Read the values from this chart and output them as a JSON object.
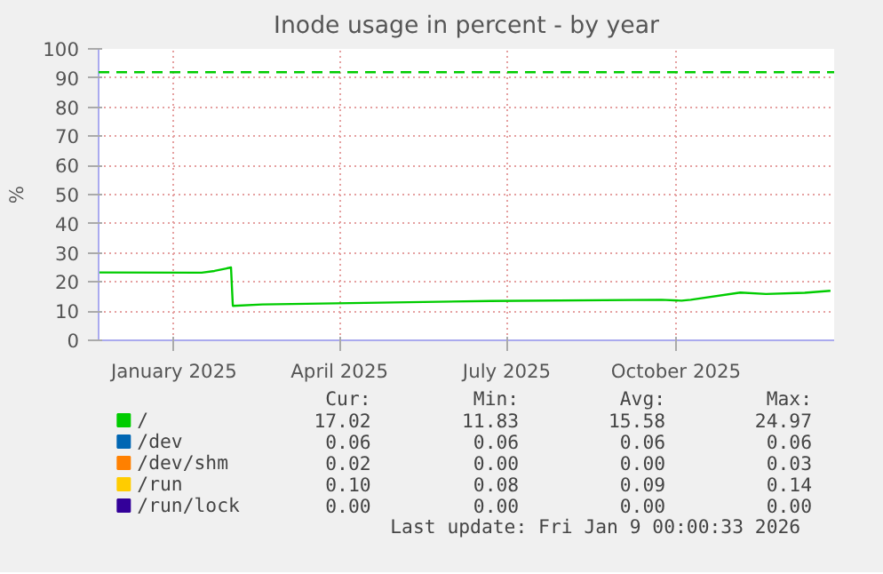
{
  "chart_data": {
    "type": "line",
    "title": "Inode usage in percent - by year",
    "ylabel": "%",
    "xlim": [
      "2024-12-06",
      "2026-01-10"
    ],
    "xticks": [
      {
        "value": "2025-01-16",
        "label": "January 2025"
      },
      {
        "value": "2025-04-16",
        "label": "April 2025"
      },
      {
        "value": "2025-07-16",
        "label": "July 2025"
      },
      {
        "value": "2025-10-16",
        "label": "October 2025"
      }
    ],
    "ylim": [
      0,
      100
    ],
    "yticks": [
      0,
      10,
      20,
      30,
      40,
      50,
      60,
      70,
      80,
      90,
      100
    ],
    "grid": true,
    "legend": "bottom",
    "line_style": "solid",
    "x": [
      "2024-12-06",
      "2025-01-31",
      "2025-02-07",
      "2025-02-13",
      "2025-02-16",
      "2025-02-17",
      "2025-03-05",
      "2025-07-07",
      "2025-10-08",
      "2025-10-19",
      "2025-10-24",
      "2025-11-20",
      "2025-12-04",
      "2025-12-25",
      "2026-01-08"
    ],
    "series": [
      {
        "name": "/",
        "color": "#00cc00",
        "values": [
          23.3,
          23.2,
          23.8,
          24.6,
          25.0,
          11.8,
          12.3,
          13.5,
          13.9,
          13.6,
          13.9,
          16.4,
          15.9,
          16.3,
          17.0
        ]
      },
      {
        "name": "/dev",
        "color": "#0066b3",
        "values": [
          null,
          null,
          null,
          null,
          null,
          null,
          null,
          null,
          null,
          null,
          null,
          null,
          null,
          null,
          null
        ]
      },
      {
        "name": "/dev/shm",
        "color": "#ff8000",
        "values": [
          null,
          null,
          null,
          null,
          null,
          null,
          null,
          null,
          null,
          null,
          null,
          null,
          null,
          null,
          null
        ]
      },
      {
        "name": "/run",
        "color": "#ffcc00",
        "values": [
          null,
          null,
          null,
          null,
          null,
          null,
          null,
          null,
          null,
          null,
          null,
          null,
          null,
          null,
          null
        ]
      },
      {
        "name": "/run/lock",
        "color": "#330099",
        "values": [
          null,
          null,
          null,
          null,
          null,
          null,
          null,
          null,
          null,
          null,
          null,
          null,
          null,
          null,
          null
        ]
      }
    ],
    "ref_lines": [
      {
        "axis": "y",
        "value": 92,
        "label": null,
        "color": "#00cc00",
        "line_style": "dashed"
      }
    ],
    "annotations": [
      "Cur:",
      "Min:",
      "Avg:",
      "Max:",
      "17.02",
      "11.83",
      "15.58",
      "24.97",
      "0.06",
      "0.06",
      "0.06",
      "0.06",
      "0.02",
      "0.00",
      "0.00",
      "0.03",
      "0.10",
      "0.08",
      "0.09",
      "0.14",
      "0.00",
      "0.00",
      "0.00",
      "0.00",
      "Last update: Fri Jan  9 00:00:33 2026"
    ]
  }
}
